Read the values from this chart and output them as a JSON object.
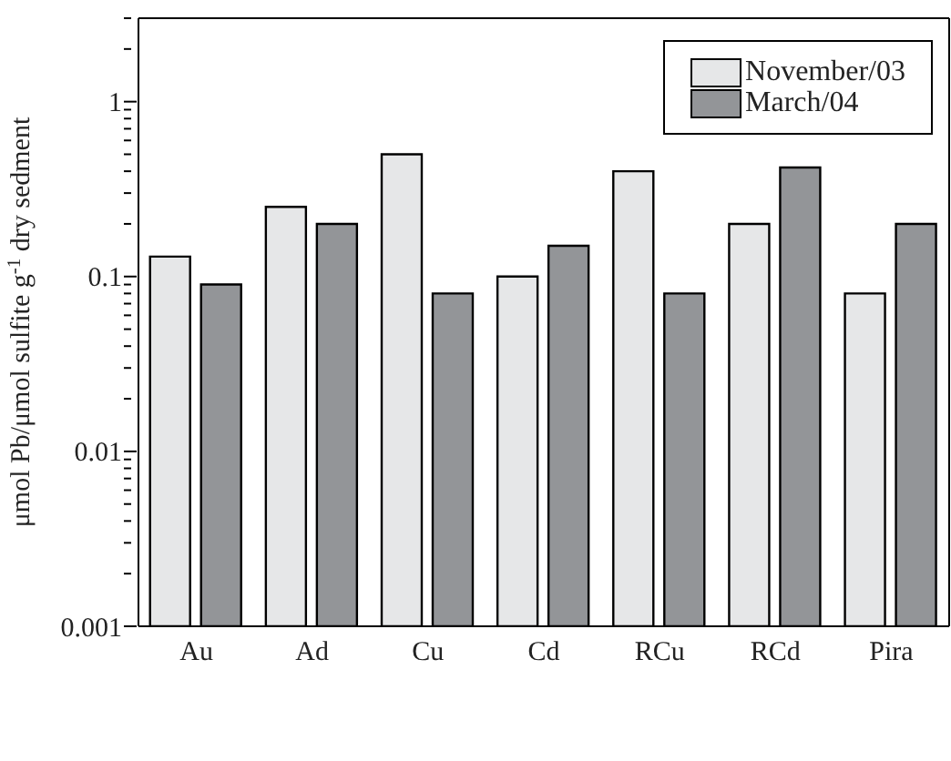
{
  "chart_data": {
    "type": "bar",
    "ylabel": "μmol Pb/μmol sulfite g$^{-1}$ dry sedment",
    "categories": [
      "Au",
      "Ad",
      "Cu",
      "Cd",
      "RCu",
      "RCd",
      "Pira"
    ],
    "series": [
      {
        "name": "November/03",
        "color": "#e6e7e8",
        "values": [
          0.13,
          0.25,
          0.5,
          0.1,
          0.4,
          0.2,
          0.08
        ]
      },
      {
        "name": "March/04",
        "color": "#939598",
        "values": [
          0.09,
          0.2,
          0.08,
          0.15,
          0.08,
          0.42,
          0.2
        ]
      }
    ],
    "log": true,
    "ylim": [
      0.001,
      3
    ],
    "yticks": [
      0.001,
      {
        "value": 0.002,
        "label": null
      },
      {
        "value": 0.003,
        "label": null
      },
      {
        "value": 0.004,
        "label": null
      },
      {
        "value": 0.005,
        "label": null
      },
      {
        "value": 0.006,
        "label": null
      },
      {
        "value": 0.007,
        "label": null
      },
      {
        "value": 0.008,
        "label": null
      },
      {
        "value": 0.009,
        "label": null
      },
      0.01,
      {
        "value": 0.02,
        "label": null
      },
      {
        "value": 0.03,
        "label": null
      },
      {
        "value": 0.04,
        "label": null
      },
      {
        "value": 0.05,
        "label": null
      },
      {
        "value": 0.06,
        "label": null
      },
      {
        "value": 0.07,
        "label": null
      },
      {
        "value": 0.08,
        "label": null
      },
      {
        "value": 0.09,
        "label": null
      },
      0.1,
      {
        "value": 0.2,
        "label": null
      },
      {
        "value": 0.3,
        "label": null
      },
      {
        "value": 0.4,
        "label": null
      },
      {
        "value": 0.5,
        "label": null
      },
      {
        "value": 0.6,
        "label": null
      },
      {
        "value": 0.7,
        "label": null
      },
      {
        "value": 0.8,
        "label": null
      },
      {
        "value": 0.9,
        "label": null
      },
      1,
      {
        "value": 2,
        "label": null
      },
      {
        "value": 3,
        "label": null
      }
    ],
    "legend": "top right"
  }
}
